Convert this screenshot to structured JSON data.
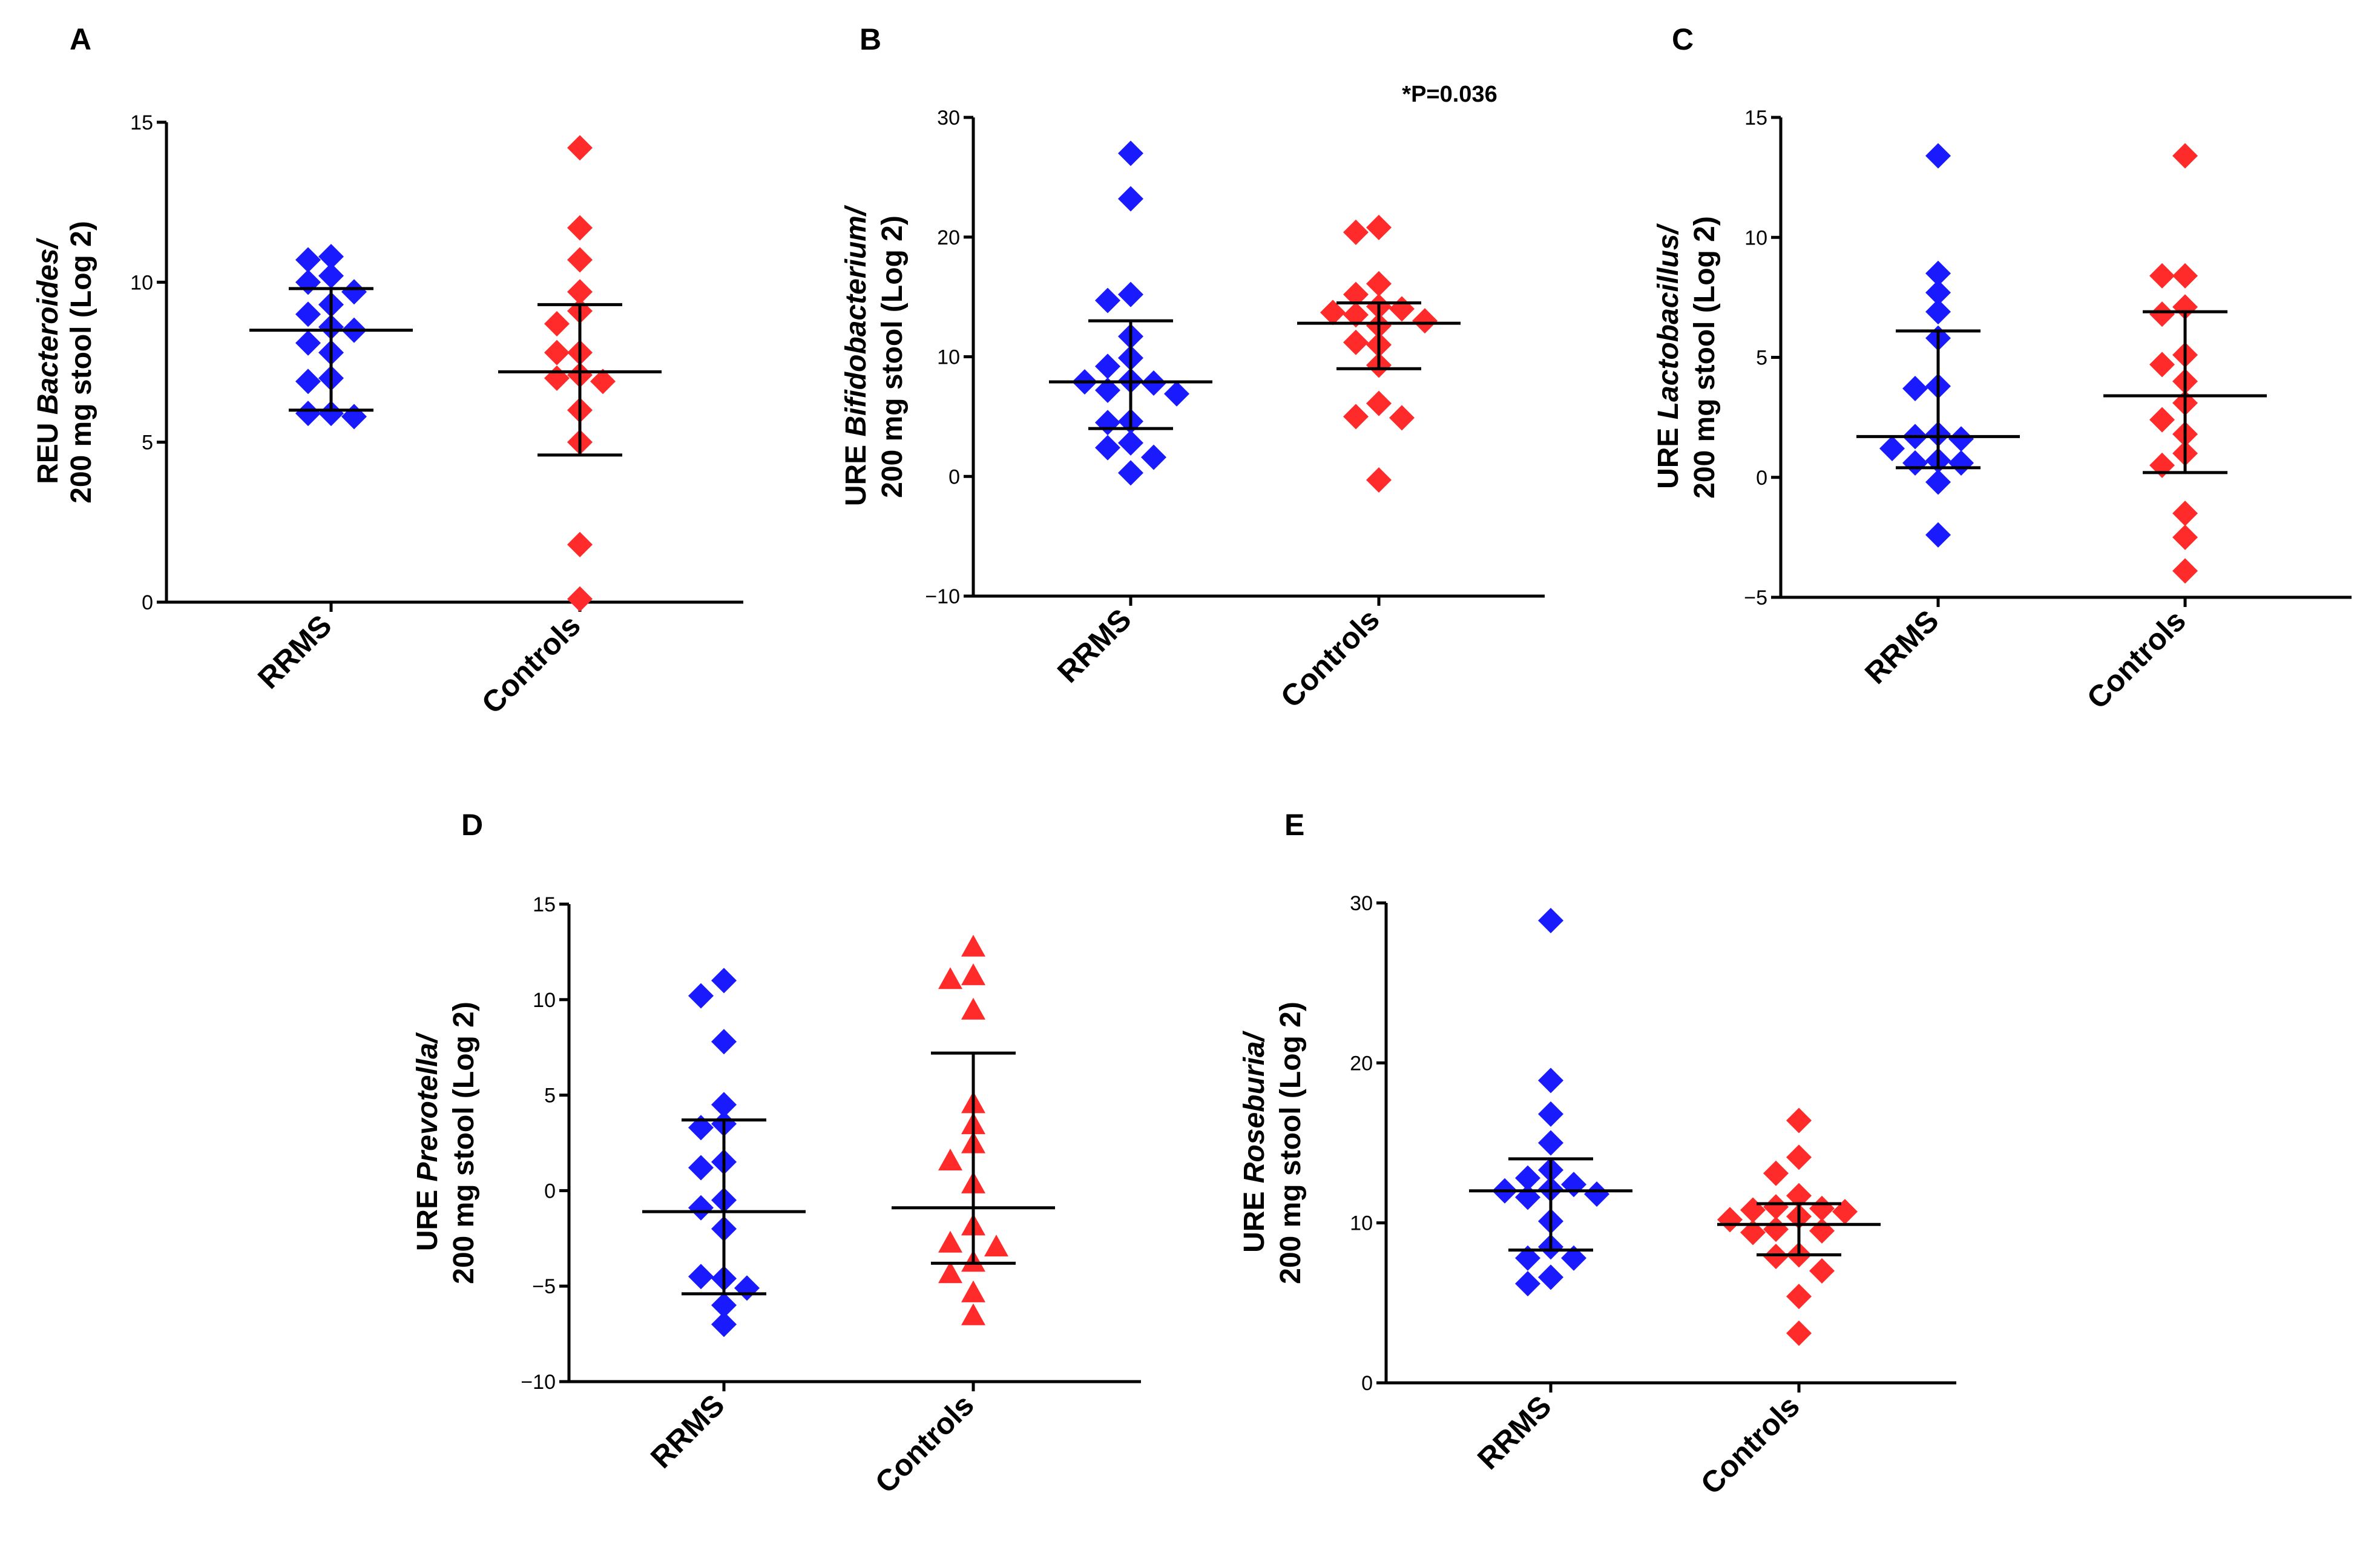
{
  "colors": {
    "rrms": "#1a1aff",
    "controls": "#ff2a2a"
  },
  "chart_data": [
    {
      "panel": "A",
      "type": "scatter",
      "ylabel_line1_prefix": "REU ",
      "ylabel_line1_italic": "Bacteroides/",
      "ylabel_line2": "200 mg stool (Log 2)",
      "categories": [
        "RRMS",
        "Controls"
      ],
      "ylim": [
        0,
        15
      ],
      "yticks": [
        0,
        5,
        10,
        15
      ],
      "annotation": "",
      "series": [
        {
          "name": "RRMS",
          "marker": "diamond",
          "values": [
            10.8,
            10.7,
            10.2,
            10.0,
            9.7,
            9.3,
            9.0,
            8.6,
            8.5,
            8.1,
            7.8,
            7.0,
            6.9,
            5.9,
            5.9,
            5.8
          ],
          "summary": {
            "median": 8.5,
            "lower": 6.0,
            "upper": 9.8
          }
        },
        {
          "name": "Controls",
          "marker": "diamond",
          "values": [
            14.2,
            11.7,
            10.7,
            9.7,
            9.1,
            8.7,
            7.8,
            7.8,
            7.1,
            7.0,
            6.0,
            6.9,
            5.0,
            1.8,
            0.1
          ],
          "summary": {
            "median": 7.2,
            "lower": 4.6,
            "upper": 9.3
          }
        }
      ]
    },
    {
      "panel": "B",
      "type": "scatter",
      "ylabel_line1_prefix": "URE ",
      "ylabel_line1_italic": "Bifidobacterium/",
      "ylabel_line2": "200 mg stool (Log 2)",
      "categories": [
        "RRMS",
        "Controls"
      ],
      "ylim": [
        -10,
        30
      ],
      "yticks": [
        -10,
        0,
        10,
        20,
        30
      ],
      "annotation": "*P=0.036",
      "series": [
        {
          "name": "RRMS",
          "marker": "diamond",
          "values": [
            27.0,
            23.2,
            15.2,
            14.7,
            11.7,
            9.9,
            9.2,
            8.0,
            7.8,
            7.9,
            7.2,
            6.9,
            4.6,
            4.5,
            2.8,
            2.4,
            1.6,
            0.3
          ],
          "summary": {
            "median": 7.9,
            "lower": 4.0,
            "upper": 13.0
          }
        },
        {
          "name": "Controls",
          "marker": "diamond",
          "values": [
            20.8,
            20.4,
            16.1,
            15.2,
            14.2,
            14.0,
            13.7,
            13.5,
            13.0,
            12.6,
            11.2,
            11.0,
            9.3,
            6.1,
            5.0,
            4.9,
            -0.3
          ],
          "summary": {
            "median": 12.8,
            "lower": 9.0,
            "upper": 14.5
          }
        }
      ]
    },
    {
      "panel": "C",
      "type": "scatter",
      "ylabel_line1_prefix": "URE ",
      "ylabel_line1_italic": "Lactobacillus/",
      "ylabel_line2": "200 mg stool (Log 2)",
      "categories": [
        "RRMS",
        "Controls"
      ],
      "ylim": [
        -5,
        15
      ],
      "yticks": [
        -5,
        0,
        5,
        10,
        15
      ],
      "annotation": "",
      "series": [
        {
          "name": "RRMS",
          "marker": "diamond",
          "values": [
            13.4,
            8.5,
            7.7,
            6.9,
            5.8,
            3.8,
            3.7,
            1.8,
            1.7,
            1.6,
            1.2,
            0.7,
            0.6,
            0.6,
            -0.2,
            -2.4
          ],
          "summary": {
            "median": 1.7,
            "lower": 0.4,
            "upper": 6.1
          }
        },
        {
          "name": "Controls",
          "marker": "diamond",
          "values": [
            13.4,
            8.4,
            8.4,
            7.1,
            6.8,
            5.1,
            4.7,
            4.0,
            3.1,
            2.4,
            1.8,
            1.0,
            0.5,
            -1.5,
            -2.5,
            -3.9
          ],
          "summary": {
            "median": 3.4,
            "lower": 0.2,
            "upper": 6.9
          }
        }
      ]
    },
    {
      "panel": "D",
      "type": "scatter",
      "ylabel_line1_prefix": "URE ",
      "ylabel_line1_italic": "Prevotella/",
      "ylabel_line2": "200 mg stool (Log 2)",
      "categories": [
        "RRMS",
        "Controls"
      ],
      "ylim": [
        -10,
        15
      ],
      "yticks": [
        -10,
        -5,
        0,
        5,
        10,
        15
      ],
      "annotation": "",
      "series": [
        {
          "name": "RRMS",
          "marker": "diamond",
          "values": [
            11.0,
            10.2,
            7.8,
            4.5,
            3.5,
            3.3,
            1.5,
            1.2,
            -0.5,
            -0.9,
            -2.0,
            -4.6,
            -4.5,
            -5.1,
            -6.0,
            -7.0
          ],
          "summary": {
            "median": -1.1,
            "lower": -5.4,
            "upper": 3.7
          }
        },
        {
          "name": "Controls",
          "marker": "triangle",
          "values": [
            12.7,
            11.2,
            11.0,
            9.4,
            4.5,
            3.4,
            2.4,
            1.5,
            0.3,
            -1.9,
            -2.8,
            -3.8,
            -3.0,
            -4.4,
            -5.4,
            -6.6
          ],
          "summary": {
            "median": -0.9,
            "lower": -3.8,
            "upper": 7.2
          }
        }
      ]
    },
    {
      "panel": "E",
      "type": "scatter",
      "ylabel_line1_prefix": "URE ",
      "ylabel_line1_italic": "Roseburia/",
      "ylabel_line2": "200 mg stool (Log 2)",
      "categories": [
        "RRMS",
        "Controls"
      ],
      "ylim": [
        0,
        30
      ],
      "yticks": [
        0,
        10,
        20,
        30
      ],
      "annotation": "",
      "series": [
        {
          "name": "RRMS",
          "marker": "diamond",
          "values": [
            28.9,
            18.9,
            16.8,
            15.0,
            13.3,
            12.8,
            12.4,
            12.1,
            12.0,
            11.8,
            11.6,
            10.1,
            8.5,
            7.8,
            7.8,
            6.6,
            6.2
          ],
          "summary": {
            "median": 12.0,
            "lower": 8.3,
            "upper": 14.0
          }
        },
        {
          "name": "Controls",
          "marker": "diamond",
          "values": [
            16.4,
            14.1,
            13.1,
            11.7,
            11.0,
            10.9,
            10.8,
            10.7,
            10.4,
            10.2,
            9.6,
            9.5,
            9.4,
            8.0,
            7.9,
            7.0,
            5.4,
            3.1
          ],
          "summary": {
            "median": 9.9,
            "lower": 8.0,
            "upper": 11.2
          }
        }
      ]
    }
  ]
}
